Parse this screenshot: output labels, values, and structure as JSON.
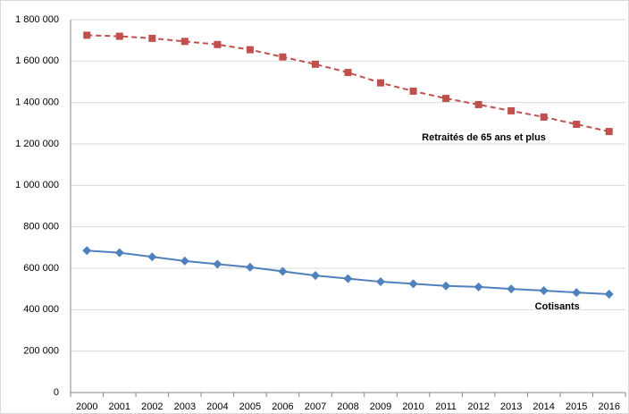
{
  "chart_data": {
    "type": "line",
    "categories": [
      "2000",
      "2001",
      "2002",
      "2003",
      "2004",
      "2005",
      "2006",
      "2007",
      "2008",
      "2009",
      "2010",
      "2011",
      "2012",
      "2013",
      "2014",
      "2015",
      "2016"
    ],
    "series": [
      {
        "name": "Retraités de 65 ans et plus",
        "color": "#c0504d",
        "dashed": true,
        "marker": "square",
        "values": [
          1725000,
          1720000,
          1710000,
          1695000,
          1680000,
          1655000,
          1620000,
          1585000,
          1545000,
          1495000,
          1455000,
          1420000,
          1390000,
          1360000,
          1330000,
          1295000,
          1260000
        ]
      },
      {
        "name": "Cotisants",
        "color": "#4f81bd",
        "dashed": false,
        "marker": "diamond",
        "values": [
          685000,
          675000,
          655000,
          635000,
          620000,
          605000,
          585000,
          565000,
          550000,
          535000,
          525000,
          515000,
          510000,
          500000,
          492000,
          483000,
          475000
        ]
      }
    ],
    "ylim": [
      0,
      1800000
    ],
    "yticks": [
      0,
      {
        "value": 200000,
        "label": "200 000"
      },
      {
        "value": 400000,
        "label": "400 000"
      },
      {
        "value": 600000,
        "label": "600 000"
      },
      {
        "value": 800000,
        "label": "800 000"
      },
      {
        "value": 1000000,
        "label": "1 000 000"
      },
      {
        "value": 1200000,
        "label": "1 200 000"
      },
      {
        "value": 1400000,
        "label": "1 400 000"
      },
      {
        "value": 1600000,
        "label": "1 600 000"
      },
      {
        "value": 1800000,
        "label": "1 800 000"
      }
    ],
    "grid": true
  }
}
